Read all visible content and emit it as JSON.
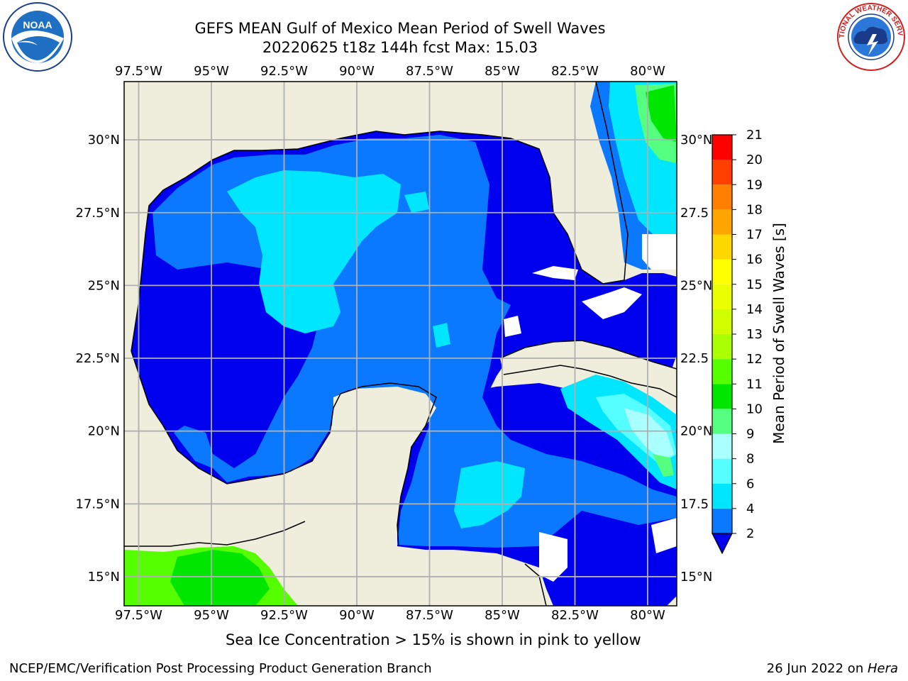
{
  "header": {
    "title": "GEFS MEAN Gulf of Mexico Mean Period of Swell Waves",
    "subtitle": "20220625 t18z 144h fcst   Max: 15.03"
  },
  "map": {
    "region": "Gulf of Mexico",
    "lon_range": [
      -98.0,
      -79.0
    ],
    "lat_range": [
      14.0,
      32.0
    ],
    "lon_ticks": [
      "97.5°W",
      "95°W",
      "92.5°W",
      "90°W",
      "87.5°W",
      "85°W",
      "82.5°W",
      "80°W"
    ],
    "lat_ticks": [
      "30°N",
      "27.5°N",
      "25°N",
      "22.5°N",
      "20°N",
      "17.5°N",
      "15°N"
    ],
    "lat_ticks_right": [
      "30°N",
      "27.5",
      "25°N",
      "22.5",
      "20°N",
      "17.5",
      "15°N"
    ],
    "land_color": "#efeddc",
    "grid_color": "#b0b0b0"
  },
  "colorbar": {
    "label": "Mean Period of Swell Waves [s]",
    "levels": [
      2,
      4,
      6,
      8,
      9,
      10,
      11,
      12,
      13,
      14,
      15,
      16,
      17,
      18,
      19,
      20,
      21
    ],
    "tick_labels": [
      "2",
      "4",
      "6",
      "8",
      "9",
      "10",
      "11",
      "12",
      "13",
      "14",
      "15",
      "16",
      "17",
      "18",
      "19",
      "20",
      "21"
    ],
    "colors": [
      "#0a78ff",
      "#00e6ff",
      "#55ffff",
      "#aaffff",
      "#55ff7f",
      "#00e600",
      "#55ff00",
      "#aaff00",
      "#d2ff00",
      "#ebff00",
      "#ffff00",
      "#ffd700",
      "#ffa500",
      "#ff8000",
      "#ff4000",
      "#ff0000"
    ],
    "under_color": "#0000ee"
  },
  "caption": "Sea Ice Concentration > 15% is shown in pink to yellow",
  "footer": {
    "left": "NCEP/EMC/Verification Post Processing Product Generation Branch",
    "right_date": "26 Jun 2022 on ",
    "right_host": "Hera"
  },
  "logos": {
    "left": "NOAA",
    "right": "NATIONAL WEATHER SERVICE"
  }
}
